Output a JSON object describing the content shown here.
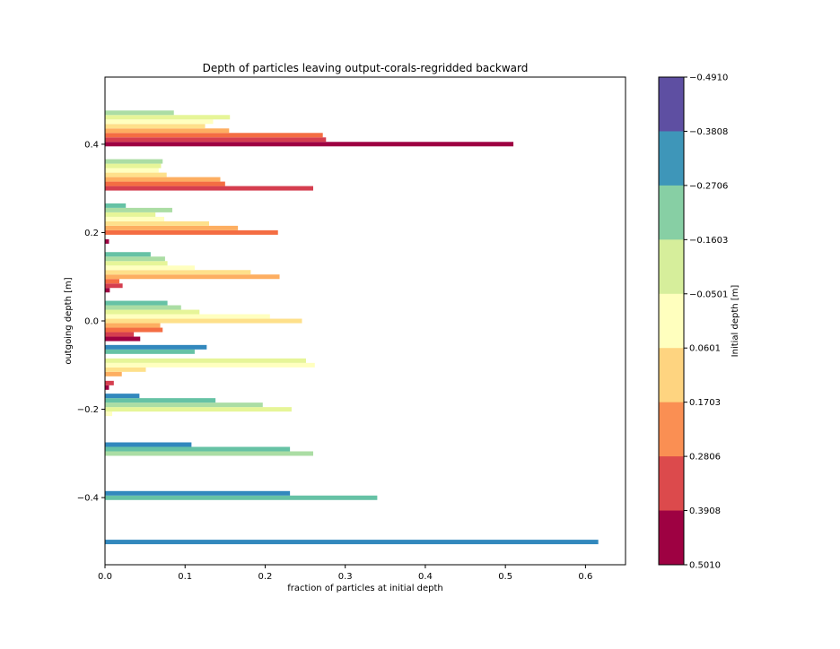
{
  "chart_data": {
    "type": "bar",
    "orientation": "horizontal",
    "title": "Depth of particles leaving output-corals-regridded backward",
    "xlabel": "fraction of particles at initial depth",
    "ylabel": "outgoing depth [m]",
    "xlim": [
      0,
      0.65
    ],
    "ylim": [
      0.552,
      -0.552
    ],
    "x_ticks": [
      {
        "value": 0.0,
        "label": "0.0"
      },
      {
        "value": 0.1,
        "label": "0.1"
      },
      {
        "value": 0.2,
        "label": "0.2"
      },
      {
        "value": 0.3,
        "label": "0.3"
      },
      {
        "value": 0.4,
        "label": "0.4"
      },
      {
        "value": 0.5,
        "label": "0.5"
      },
      {
        "value": 0.6,
        "label": "0.6"
      }
    ],
    "y_ticks": [
      {
        "value": -0.4,
        "label": "−0.4"
      },
      {
        "value": -0.2,
        "label": "−0.2"
      },
      {
        "value": 0.0,
        "label": "0.0"
      },
      {
        "value": 0.2,
        "label": "0.2"
      },
      {
        "value": 0.4,
        "label": "0.4"
      }
    ],
    "grid": false,
    "outgoing_depth_bins": [
      0.4459,
      0.3357,
      0.2255,
      0.1152,
      0.005,
      -0.1052,
      -0.2154,
      -0.3257,
      -0.4359,
      -0.5461
    ],
    "series": [
      {
        "initial_depth_index": 0,
        "color": "#9e0142",
        "values": [
          0.51,
          0.0,
          0.005,
          0.006,
          0.044,
          0.005,
          0.0,
          0.0,
          0.0,
          0.0
        ]
      },
      {
        "initial_depth_index": 1,
        "color": "#d53e4f",
        "values": [
          0.276,
          0.26,
          0.0,
          0.022,
          0.036,
          0.011,
          0.0,
          0.0,
          0.0,
          0.0
        ]
      },
      {
        "initial_depth_index": 2,
        "color": "#f46d43",
        "values": [
          0.272,
          0.15,
          0.216,
          0.018,
          0.072,
          0.0,
          0.0,
          0.0,
          0.0,
          0.0
        ]
      },
      {
        "initial_depth_index": 3,
        "color": "#fdae61",
        "values": [
          0.155,
          0.144,
          0.166,
          0.218,
          0.069,
          0.021,
          0.0,
          0.0,
          0.0,
          0.0
        ]
      },
      {
        "initial_depth_index": 4,
        "color": "#fee08b",
        "values": [
          0.125,
          0.077,
          0.13,
          0.182,
          0.246,
          0.051,
          0.0,
          0.0,
          0.0,
          0.0
        ]
      },
      {
        "initial_depth_index": 5,
        "color": "#ffffbf",
        "values": [
          0.135,
          0.067,
          0.074,
          0.112,
          0.206,
          0.262,
          0.009,
          0.0,
          0.0,
          0.0
        ]
      },
      {
        "initial_depth_index": 6,
        "color": "#e6f598",
        "values": [
          0.156,
          0.07,
          0.063,
          0.078,
          0.118,
          0.251,
          0.233,
          0.0,
          0.0,
          0.0
        ]
      },
      {
        "initial_depth_index": 7,
        "color": "#abdda4",
        "values": [
          0.086,
          0.072,
          0.084,
          0.075,
          0.095,
          0.0,
          0.197,
          0.26,
          0.0,
          0.0
        ]
      },
      {
        "initial_depth_index": 8,
        "color": "#66c2a5",
        "values": [
          0.0,
          0.0,
          0.026,
          0.057,
          0.078,
          0.112,
          0.138,
          0.231,
          0.34,
          0.0
        ]
      },
      {
        "initial_depth_index": 9,
        "color": "#3288bd",
        "values": [
          0.0,
          0.0,
          0.0,
          0.0,
          0.0,
          0.127,
          0.043,
          0.108,
          0.231,
          0.616
        ]
      }
    ],
    "bar_series_colors": [
      "#9e0142",
      "#c8384b",
      "#ea5b4f",
      "#f77e49",
      "#fdae61",
      "#f5f2a8",
      "#fff7b8",
      "#d9ee9c",
      "#85cea4",
      "#3b90bc",
      "#5e4fa2"
    ],
    "colorbar": {
      "label": "Initial depth [m]",
      "ticks": [
        "−0.4910",
        "−0.3808",
        "−0.2706",
        "−0.1603",
        "−0.0501",
        "0.0601",
        "0.1703",
        "0.2806",
        "0.3908",
        "0.5010"
      ],
      "colors_top_to_bottom": [
        "#5e4fa2",
        "#3e96b9",
        "#87cfa4",
        "#d6ee9b",
        "#ffffbe",
        "#fed480",
        "#fa8f53",
        "#dc4a4c",
        "#9e0142"
      ]
    }
  }
}
